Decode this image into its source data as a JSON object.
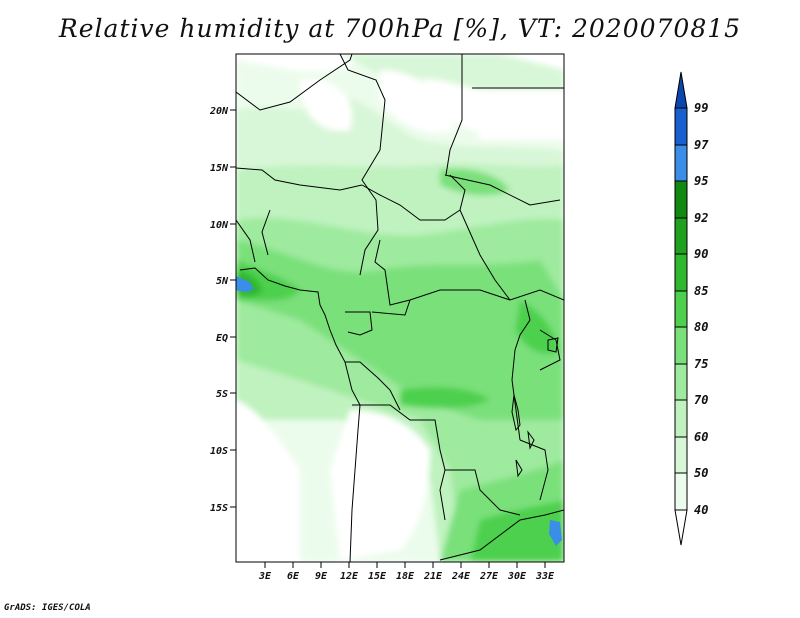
{
  "title": "Relative humidity at 700hPa [%], VT: 2020070815",
  "footer": "GrADS: IGES/COLA",
  "lat_labels": [
    "20N",
    "15N",
    "10N",
    "5N",
    "EQ",
    "5S",
    "10S",
    "15S"
  ],
  "lon_labels": [
    "3E",
    "6E",
    "9E",
    "12E",
    "15E",
    "18E",
    "21E",
    "24E",
    "27E",
    "30E",
    "33E"
  ],
  "colorbar": {
    "labels": [
      "99",
      "97",
      "95",
      "92",
      "90",
      "85",
      "80",
      "75",
      "70",
      "60",
      "50",
      "40"
    ],
    "colors": {
      "97-99": "#1a5fd0",
      "95-97": "#3a8ee8",
      "92-95": "#118811",
      "90-92": "#1fa11f",
      "85-90": "#2eb82e",
      "80-85": "#4ed04e",
      "75-80": "#7ae07a",
      "70-75": "#9eea9e",
      "60-70": "#bff2bf",
      "50-60": "#d8f7d8",
      "40-50": "#ecfcec",
      "below-40": "#ffffff",
      "above-99": "#0a47b0"
    }
  }
}
